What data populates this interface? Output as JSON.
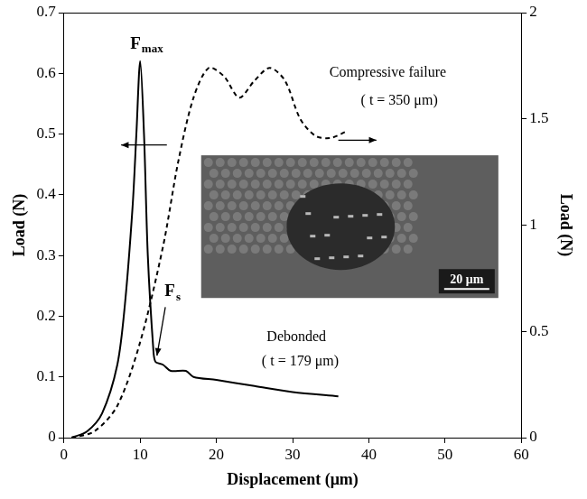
{
  "chart_data": {
    "type": "line",
    "x_label": "Displacement (μm)",
    "y_label": "Load (N)",
    "y2_label": "Load (N)",
    "xlim": [
      0,
      60
    ],
    "xticks": [
      0,
      10,
      20,
      30,
      40,
      50,
      60
    ],
    "ylim": [
      0,
      0.7
    ],
    "yticks": [
      0,
      0.1,
      0.2,
      0.3,
      0.4,
      0.5,
      0.6,
      0.7
    ],
    "y2lim": [
      0,
      2
    ],
    "y2ticks": [
      0,
      0.5,
      1,
      1.5,
      2
    ],
    "grid": false,
    "series": [
      {
        "color": "#000000",
        "line_style": "solid",
        "axis": "y",
        "x": [
          1,
          3,
          5,
          7,
          8,
          9,
          9.5,
          10,
          10.5,
          11,
          11.7,
          12,
          13,
          14,
          16,
          17,
          20,
          25,
          30,
          36
        ],
        "values": [
          0,
          0.01,
          0.04,
          0.12,
          0.22,
          0.38,
          0.5,
          0.62,
          0.5,
          0.3,
          0.15,
          0.125,
          0.12,
          0.11,
          0.11,
          0.1,
          0.095,
          0.085,
          0.075,
          0.068
        ]
      },
      {
        "color": "#000000",
        "line_style": "dashed",
        "axis": "y2",
        "x": [
          1,
          4,
          7,
          10,
          13,
          15,
          17,
          19,
          21,
          23,
          25,
          27,
          29,
          31,
          33,
          35,
          37
        ],
        "values": [
          0,
          0.03,
          0.15,
          0.45,
          0.9,
          1.3,
          1.6,
          1.74,
          1.7,
          1.6,
          1.68,
          1.74,
          1.68,
          1.5,
          1.42,
          1.41,
          1.44
        ]
      }
    ],
    "annotations": [
      {
        "text": "F",
        "subscript": "max"
      },
      {
        "text": "F",
        "subscript": "s"
      },
      {
        "text": "Compressive failure"
      },
      {
        "text": "( t = 350 μm)"
      },
      {
        "text": "Debonded"
      },
      {
        "text": "( t = 179 μm)"
      },
      {
        "text": "20 μm"
      }
    ]
  }
}
